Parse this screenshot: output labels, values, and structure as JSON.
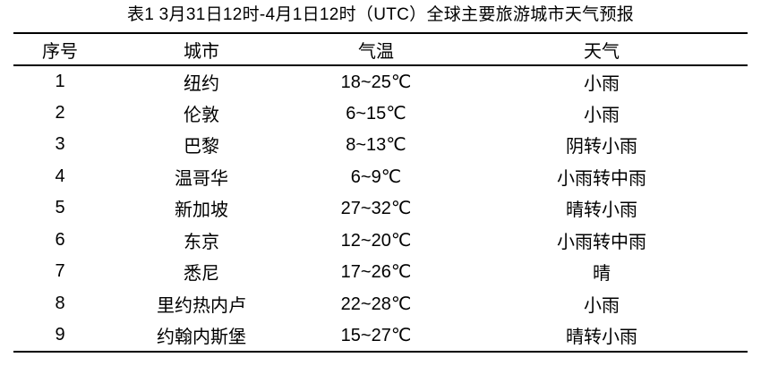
{
  "table": {
    "title": "表1 3月31日12时-4月1日12时（UTC）全球主要旅游城市天气预报",
    "columns": [
      "序号",
      "城市",
      "气温",
      "天气"
    ],
    "rows": [
      [
        "1",
        "纽约",
        "18~25℃",
        "小雨"
      ],
      [
        "2",
        "伦敦",
        "6~15℃",
        "小雨"
      ],
      [
        "3",
        "巴黎",
        "8~13℃",
        "阴转小雨"
      ],
      [
        "4",
        "温哥华",
        "6~9℃",
        "小雨转中雨"
      ],
      [
        "5",
        "新加坡",
        "27~32℃",
        "晴转小雨"
      ],
      [
        "6",
        "东京",
        "12~20℃",
        "小雨转中雨"
      ],
      [
        "7",
        "悉尼",
        "17~26℃",
        "晴"
      ],
      [
        "8",
        "里约热内卢",
        "22~28℃",
        "小雨"
      ],
      [
        "9",
        "约翰内斯堡",
        "15~27℃",
        "晴转小雨"
      ]
    ]
  },
  "colors": {
    "text": "#000000",
    "background": "#ffffff",
    "rule": "#000000"
  }
}
